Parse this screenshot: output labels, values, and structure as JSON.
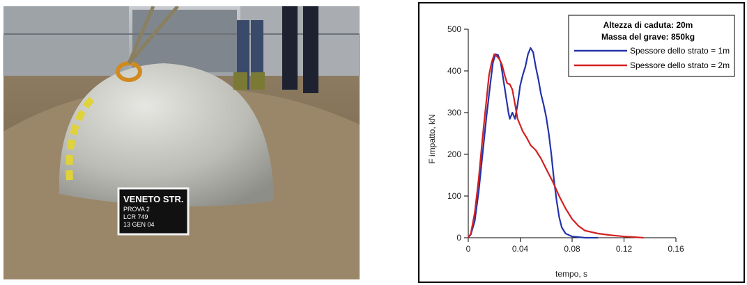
{
  "photo": {
    "sign_lines": [
      "VENETO STR.",
      "PROVA 2",
      "LCR 749",
      "13 GEN 04"
    ]
  },
  "chart_data": {
    "type": "line",
    "xlabel": "tempo, s",
    "ylabel": "F impatto, kN",
    "xlim": [
      0,
      0.16
    ],
    "ylim": [
      0,
      500
    ],
    "x_ticks": [
      "0",
      "0.04",
      "0.08",
      "0.12",
      "0.16"
    ],
    "y_ticks": [
      "0",
      "100",
      "200",
      "300",
      "400",
      "500"
    ],
    "grid": false,
    "legend": {
      "position": "top-right",
      "title_lines": [
        "Altezza di caduta: 20m",
        "Massa del grave: 850kg"
      ]
    },
    "series": [
      {
        "name": "Spessore dello strato = 1m",
        "color": "#2233aa",
        "points": [
          [
            0,
            0
          ],
          [
            0.002,
            8
          ],
          [
            0.005,
            40
          ],
          [
            0.008,
            110
          ],
          [
            0.011,
            200
          ],
          [
            0.014,
            290
          ],
          [
            0.017,
            370
          ],
          [
            0.019,
            420
          ],
          [
            0.021,
            440
          ],
          [
            0.023,
            438
          ],
          [
            0.025,
            420
          ],
          [
            0.027,
            380
          ],
          [
            0.029,
            340
          ],
          [
            0.031,
            300
          ],
          [
            0.032,
            285
          ],
          [
            0.034,
            300
          ],
          [
            0.036,
            285
          ],
          [
            0.038,
            320
          ],
          [
            0.04,
            365
          ],
          [
            0.042,
            390
          ],
          [
            0.044,
            410
          ],
          [
            0.046,
            440
          ],
          [
            0.048,
            455
          ],
          [
            0.05,
            445
          ],
          [
            0.052,
            410
          ],
          [
            0.054,
            380
          ],
          [
            0.056,
            345
          ],
          [
            0.058,
            320
          ],
          [
            0.06,
            290
          ],
          [
            0.062,
            250
          ],
          [
            0.064,
            200
          ],
          [
            0.066,
            140
          ],
          [
            0.068,
            90
          ],
          [
            0.07,
            50
          ],
          [
            0.072,
            25
          ],
          [
            0.075,
            10
          ],
          [
            0.08,
            3
          ],
          [
            0.09,
            0
          ],
          [
            0.1,
            0
          ]
        ]
      },
      {
        "name": "Spessore dello strato = 2m",
        "color": "#d42020",
        "points": [
          [
            0,
            0
          ],
          [
            0.002,
            10
          ],
          [
            0.005,
            60
          ],
          [
            0.008,
            140
          ],
          [
            0.011,
            240
          ],
          [
            0.014,
            330
          ],
          [
            0.016,
            390
          ],
          [
            0.018,
            420
          ],
          [
            0.02,
            440
          ],
          [
            0.022,
            435
          ],
          [
            0.024,
            428
          ],
          [
            0.026,
            415
          ],
          [
            0.028,
            390
          ],
          [
            0.03,
            370
          ],
          [
            0.032,
            368
          ],
          [
            0.034,
            355
          ],
          [
            0.036,
            320
          ],
          [
            0.038,
            285
          ],
          [
            0.04,
            270
          ],
          [
            0.042,
            255
          ],
          [
            0.045,
            240
          ],
          [
            0.048,
            222
          ],
          [
            0.052,
            210
          ],
          [
            0.056,
            190
          ],
          [
            0.06,
            165
          ],
          [
            0.065,
            135
          ],
          [
            0.07,
            100
          ],
          [
            0.075,
            70
          ],
          [
            0.08,
            45
          ],
          [
            0.085,
            28
          ],
          [
            0.09,
            17
          ],
          [
            0.1,
            10
          ],
          [
            0.11,
            6
          ],
          [
            0.12,
            3
          ],
          [
            0.13,
            1
          ],
          [
            0.135,
            0
          ]
        ]
      }
    ]
  }
}
